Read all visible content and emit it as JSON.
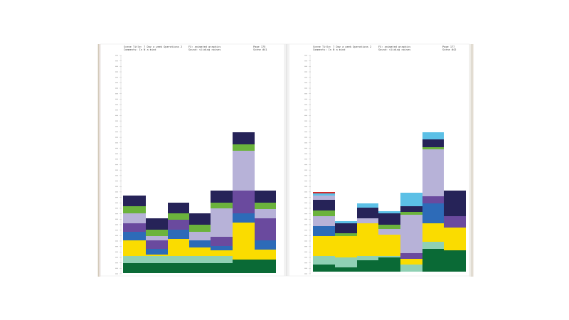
{
  "pages": [
    {
      "header": {
        "scene_title": "Scene Title: 7 Day a week Operations 2",
        "comments": "Comments: In N a mind",
        "fx": "FX: animated graphics",
        "sound": "Sound: sliding noises",
        "page": "Page 175",
        "scene": "Scene #41"
      }
    },
    {
      "header": {
        "scene_title": "Scene Title: 7 Day a week Operations 2",
        "comments": "Comments: In N a mind",
        "fx": "FX: animated graphics",
        "sound": "Sound: sliding noises",
        "page": "Page 177",
        "scene": "Scene #42"
      }
    }
  ],
  "colors": {
    "dark_green": "#0a6a36",
    "mint": "#8fd0b4",
    "yellow": "#fadc00",
    "blue": "#2d6bb8",
    "purple": "#6a4a9e",
    "lavender": "#b7b2d8",
    "green": "#6bb33c",
    "navy": "#262358",
    "sky": "#5cc0e6",
    "red": "#d02a2a"
  }
}
